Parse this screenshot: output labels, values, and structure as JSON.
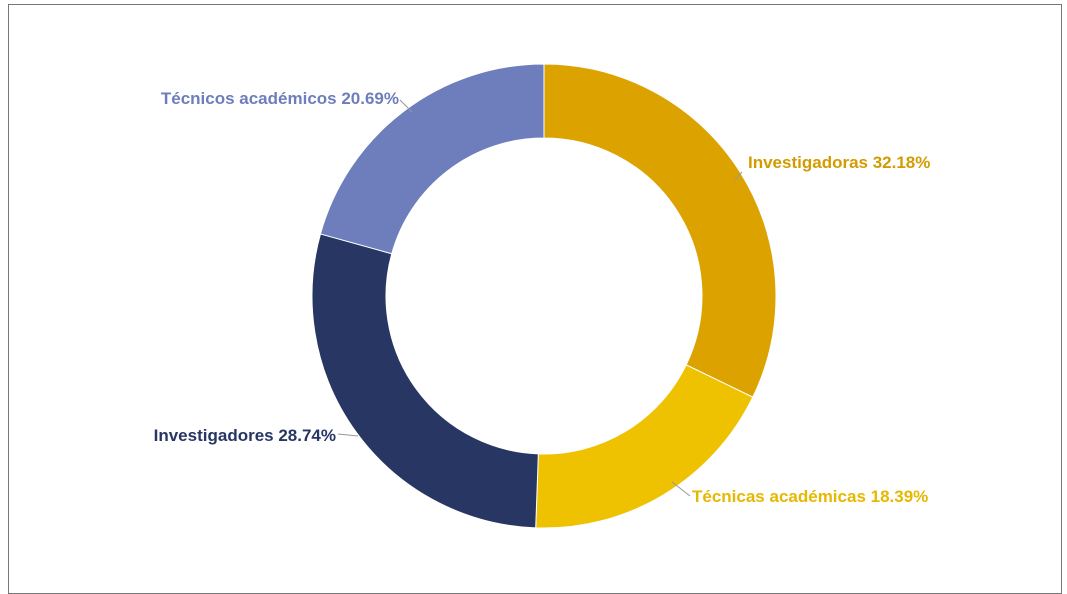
{
  "chart_data": {
    "type": "pie",
    "variant": "donut",
    "title": "",
    "unit": "%",
    "slices": [
      {
        "label": "Investigadoras 32.18%",
        "category": "Investigadoras",
        "value": 32.18,
        "color": "#DBA200"
      },
      {
        "label": "Técnicas académicas 18.39%",
        "category": "Técnicas académicas",
        "value": 18.39,
        "color": "#EEC200"
      },
      {
        "label": "Investigadores 28.74%",
        "category": "Investigadores",
        "value": 28.74,
        "color": "#283663"
      },
      {
        "label": "Técnicos académicos 20.69%",
        "category": "Técnicos académicos",
        "value": 20.69,
        "color": "#6E7EBD"
      }
    ],
    "start_angle": "top",
    "direction": "clockwise",
    "legend": "none",
    "label_colors": [
      "#D29C00",
      "#E6B800",
      "#283663",
      "#6E7EBD"
    ]
  }
}
